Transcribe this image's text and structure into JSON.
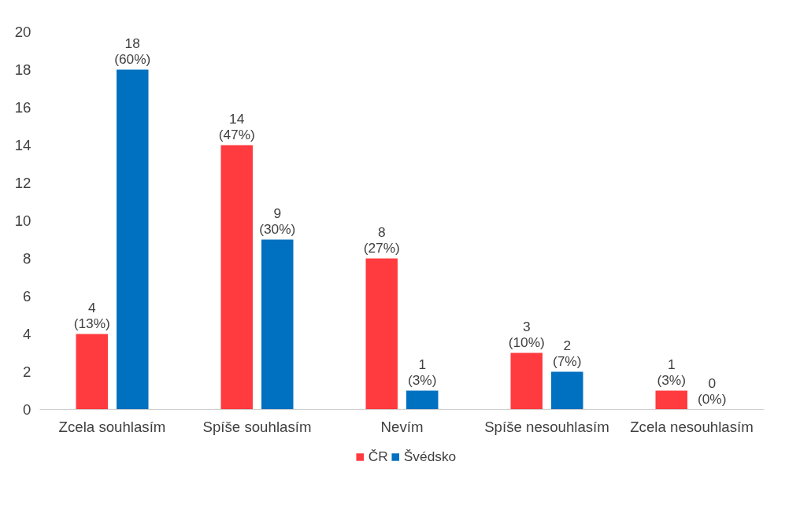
{
  "chart_data": {
    "type": "bar",
    "categories": [
      "Zcela souhlasím",
      "Spíše souhlasím",
      "Nevím",
      "Spíše nesouhlasím",
      "Zcela nesouhlasím"
    ],
    "series": [
      {
        "name": "ČR",
        "color": "#ff3b3f",
        "values": [
          4,
          14,
          8,
          3,
          1
        ],
        "value_labels": [
          "4\n(13%)",
          "14\n(47%)",
          "8\n(27%)",
          "3\n(10%)",
          "1\n(3%)"
        ]
      },
      {
        "name": "Švédsko",
        "color": "#0070c0",
        "values": [
          18,
          9,
          1,
          2,
          0
        ],
        "value_labels": [
          "18\n(60%)",
          "9\n(30%)",
          "1\n(3%)",
          "2\n(7%)",
          "0\n(0%)"
        ]
      }
    ],
    "ylim": [
      0,
      20
    ],
    "yticks": [
      0,
      2,
      4,
      6,
      8,
      10,
      12,
      14,
      16,
      18,
      20
    ],
    "grid": false,
    "legend": "bottom"
  }
}
